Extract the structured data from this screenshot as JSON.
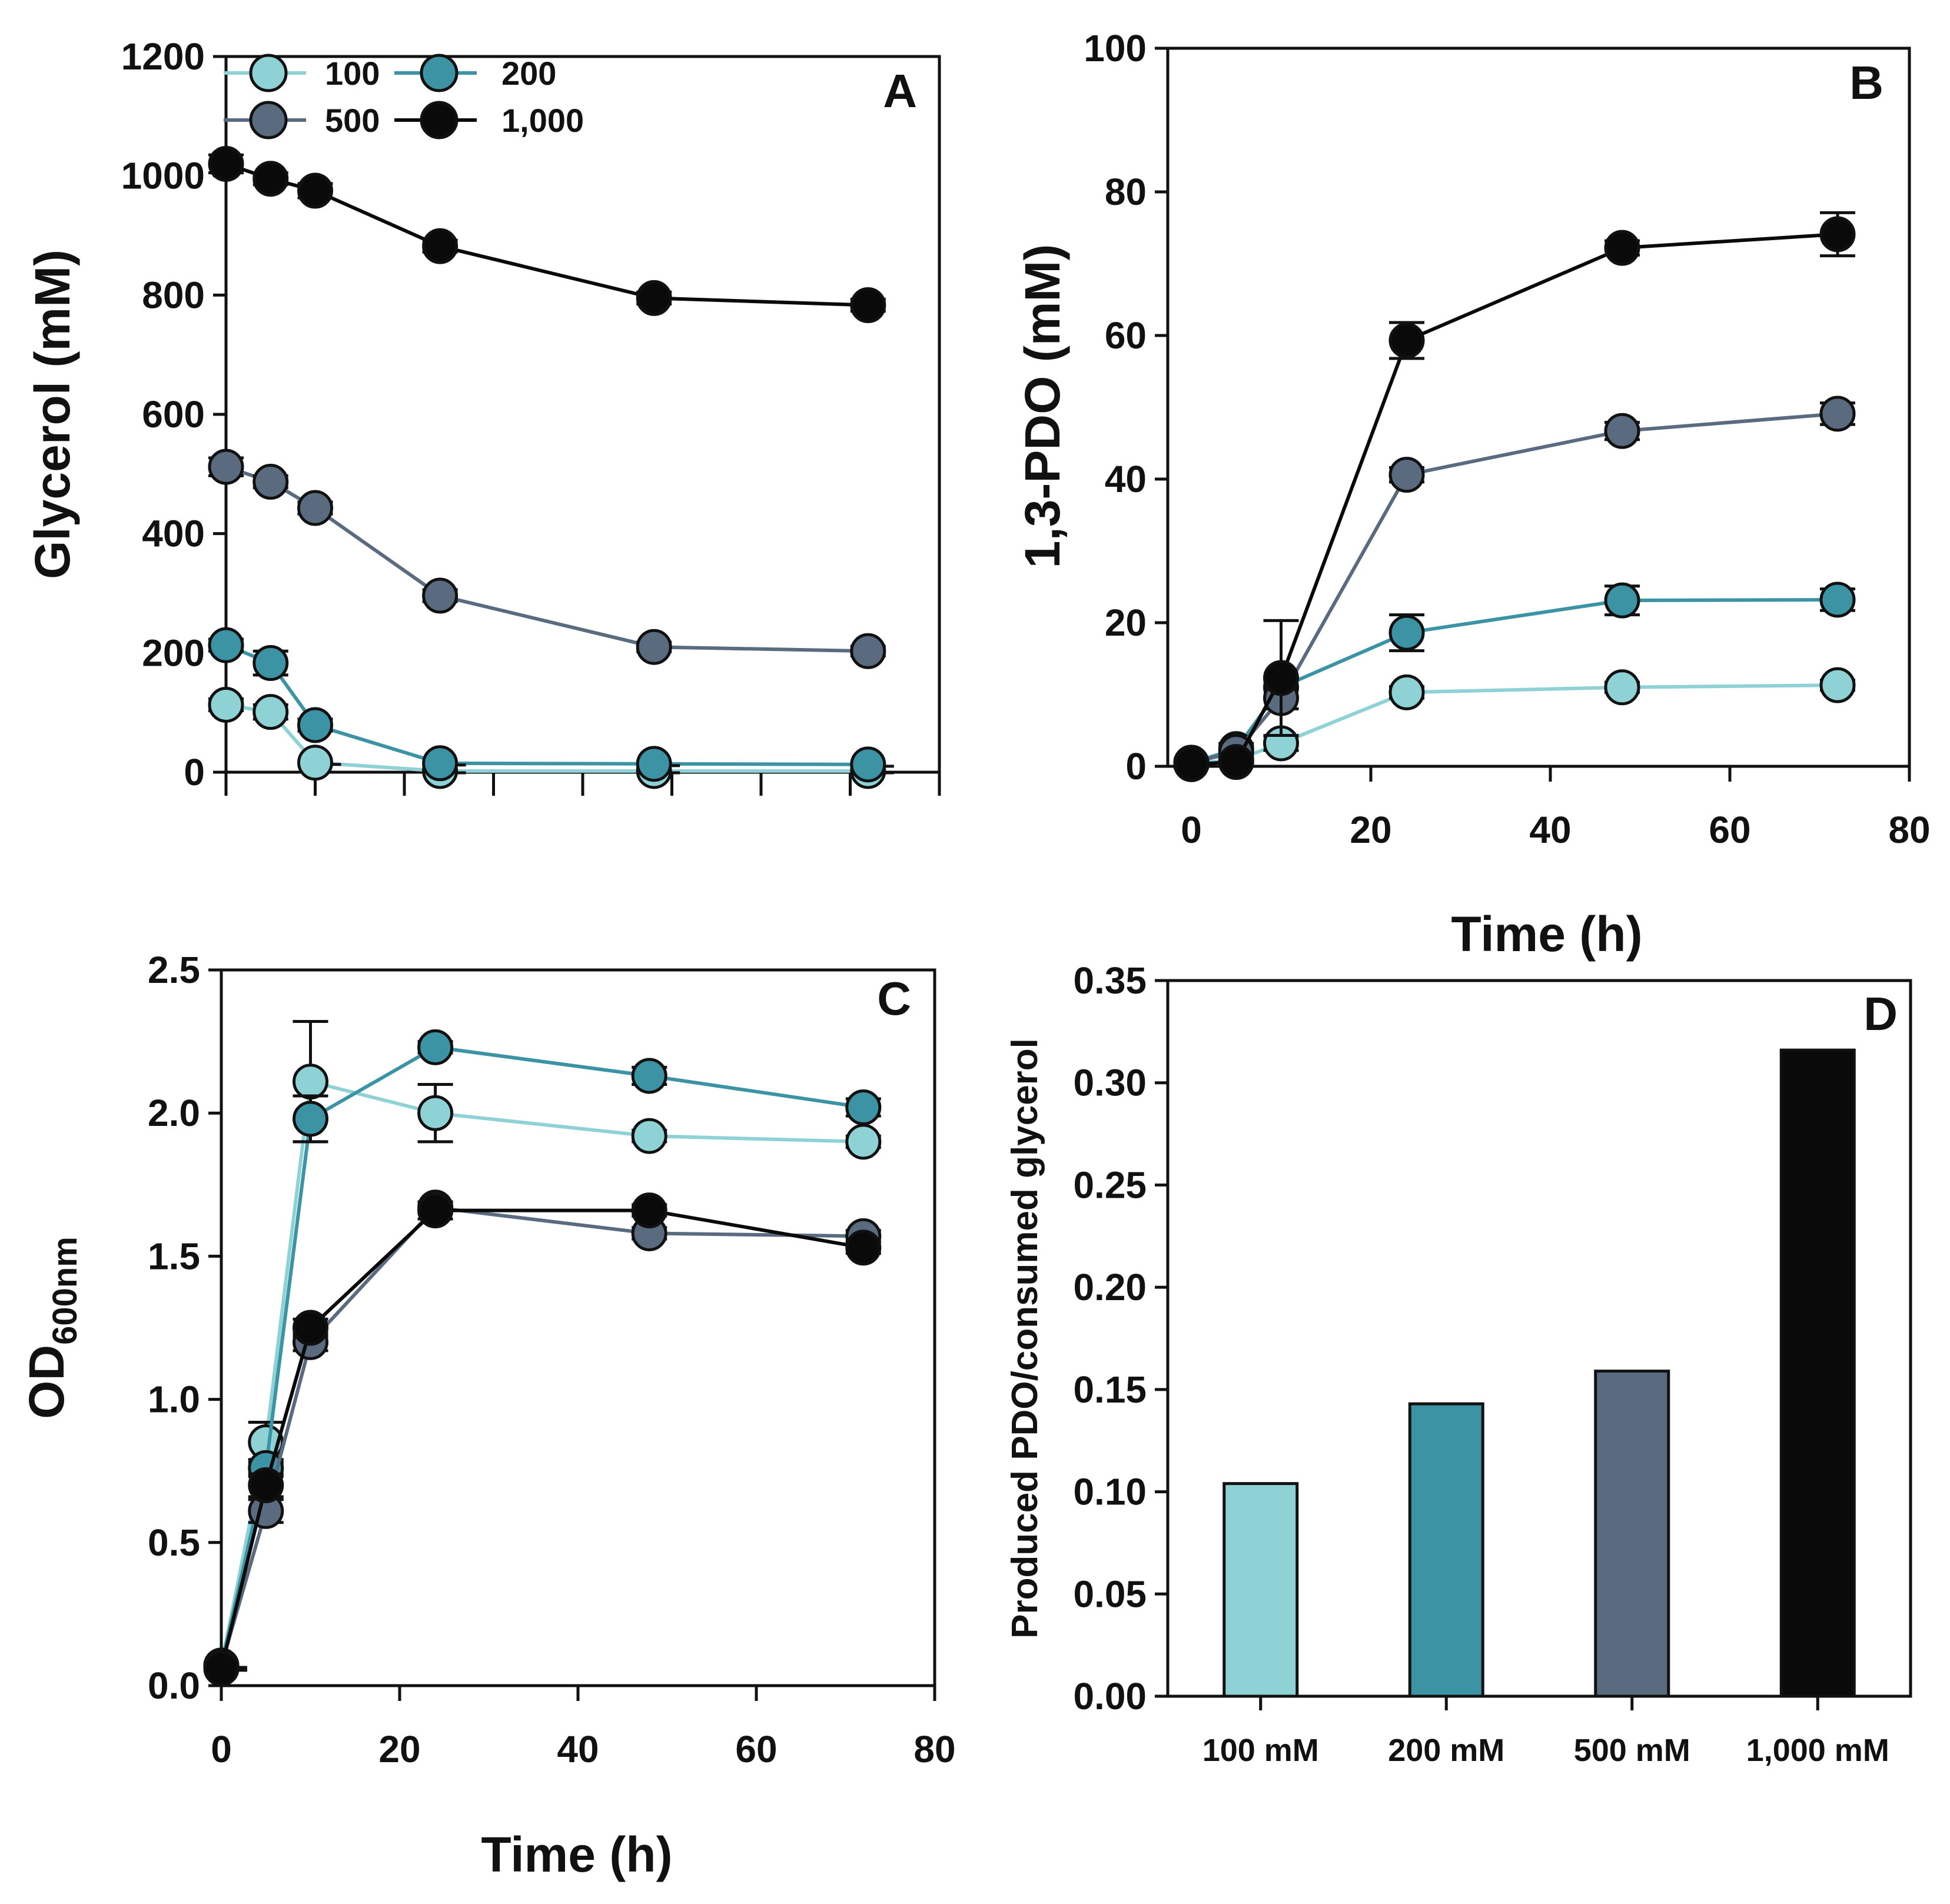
{
  "colors": {
    "100": "#8ed2d6",
    "200": "#3c93a3",
    "500": "#5a6b80",
    "1,000": "#0a0a0a"
  },
  "legend": [
    {
      "key": "100",
      "label": "100"
    },
    {
      "key": "200",
      "label": "200"
    },
    {
      "key": "500",
      "label": "500"
    },
    {
      "key": "1,000",
      "label": "1,000"
    }
  ],
  "chart_data": [
    {
      "id": "A",
      "panel_letter": "A",
      "type": "line",
      "ylabel": "Glycerol (mM)",
      "xlabel": "",
      "xlim": [
        0,
        80
      ],
      "ylim": [
        0,
        1200
      ],
      "yticks": [
        "0",
        "200",
        "400",
        "600",
        "800",
        "1000",
        "1200"
      ],
      "xticks": [],
      "x": [
        0,
        5,
        10,
        24,
        48,
        72
      ],
      "series": [
        {
          "name": "100",
          "values": [
            113,
            101,
            16,
            2,
            2,
            2
          ],
          "err": [
            10,
            12,
            5,
            2,
            2,
            2
          ]
        },
        {
          "name": "200",
          "values": [
            213,
            183,
            79,
            15,
            14,
            13
          ],
          "err": [
            10,
            20,
            10,
            3,
            3,
            3
          ]
        },
        {
          "name": "500",
          "values": [
            512,
            487,
            443,
            296,
            210,
            203
          ],
          "err": [
            15,
            10,
            10,
            10,
            8,
            8
          ]
        },
        {
          "name": "1,000",
          "values": [
            1020,
            995,
            975,
            882,
            795,
            783
          ],
          "err": [
            15,
            10,
            12,
            10,
            10,
            10
          ]
        }
      ],
      "legend_position": "top-left"
    },
    {
      "id": "B",
      "panel_letter": "B",
      "type": "line",
      "ylabel": "1,3-PDO (mM)",
      "xlabel": "Time (h)",
      "xlim": [
        0,
        80
      ],
      "ylim": [
        0,
        100
      ],
      "yticks": [
        "0",
        "20",
        "40",
        "60",
        "80",
        "100"
      ],
      "xticks": [
        "0",
        "20",
        "40",
        "60",
        "80"
      ],
      "x": [
        0,
        5,
        10,
        24,
        48,
        72
      ],
      "series": [
        {
          "name": "100",
          "values": [
            0.4,
            0.9,
            3.2,
            10.3,
            11.0,
            11.3
          ],
          "err": [
            0.5,
            0.5,
            1.0,
            0.8,
            0.7,
            0.7
          ]
        },
        {
          "name": "200",
          "values": [
            0.5,
            2.4,
            11.0,
            18.6,
            23.1,
            23.2
          ],
          "err": [
            0.5,
            0.8,
            1.5,
            2.5,
            2.0,
            1.5
          ]
        },
        {
          "name": "500",
          "values": [
            0.5,
            2.0,
            9.5,
            40.6,
            46.7,
            49.1
          ],
          "err": [
            0.5,
            0.8,
            1.5,
            1.0,
            1.2,
            1.5
          ]
        },
        {
          "name": "1,000",
          "values": [
            0.3,
            0.6,
            12.3,
            59.3,
            72.2,
            74.1
          ],
          "err": [
            0.5,
            0.5,
            8.0,
            2.5,
            1.0,
            3.0
          ]
        }
      ]
    },
    {
      "id": "C",
      "panel_letter": "C",
      "type": "line",
      "ylabel": "OD",
      "ylabel_sub": "600nm",
      "xlabel": "Time (h)",
      "xlim": [
        0,
        80
      ],
      "ylim": [
        0,
        2.5
      ],
      "yticks": [
        "0.0",
        "0.5",
        "1.0",
        "1.5",
        "2.0",
        "2.5"
      ],
      "xticks": [
        "0",
        "20",
        "40",
        "60",
        "80"
      ],
      "x": [
        0,
        5,
        10,
        24,
        48,
        72
      ],
      "series": [
        {
          "name": "100",
          "values": [
            0.07,
            0.85,
            2.11,
            2.0,
            1.92,
            1.9
          ],
          "err": [
            0.01,
            0.07,
            0.21,
            0.1,
            0.02,
            0.02
          ]
        },
        {
          "name": "200",
          "values": [
            0.07,
            0.76,
            1.98,
            2.23,
            2.13,
            2.02
          ],
          "err": [
            0.01,
            0.03,
            0.08,
            0.02,
            0.03,
            0.03
          ]
        },
        {
          "name": "500",
          "values": [
            0.07,
            0.61,
            1.2,
            1.67,
            1.58,
            1.57
          ],
          "err": [
            0.01,
            0.04,
            0.03,
            0.02,
            0.02,
            0.02
          ]
        },
        {
          "name": "1,000",
          "values": [
            0.06,
            0.7,
            1.25,
            1.66,
            1.66,
            1.53
          ],
          "err": [
            0.01,
            0.04,
            0.03,
            0.03,
            0.02,
            0.02
          ]
        }
      ]
    },
    {
      "id": "D",
      "panel_letter": "D",
      "type": "bar",
      "ylabel": "Produced PDO/consumed glycerol",
      "xlabel": "",
      "ylim": [
        0,
        0.35
      ],
      "yticks": [
        "0.00",
        "0.05",
        "0.10",
        "0.15",
        "0.20",
        "0.25",
        "0.30",
        "0.35"
      ],
      "categories": [
        "100 mM",
        "200 mM",
        "500 mM",
        "1,000 mM"
      ],
      "color_keys": [
        "100",
        "200",
        "500",
        "1,000"
      ],
      "values": [
        0.104,
        0.143,
        0.159,
        0.316
      ]
    }
  ]
}
